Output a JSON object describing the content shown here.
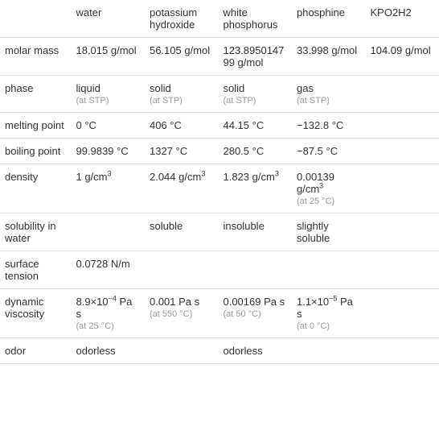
{
  "table": {
    "background_color": "#ffffff",
    "grid_color": "#e0e0e0",
    "text_color": "#333333",
    "note_color": "#999999",
    "font_size_main": 13,
    "font_size_note": 11,
    "columns": [
      "",
      "water",
      "potassium hydroxide",
      "white phosphorus",
      "phosphine",
      "KPO2H2"
    ],
    "rows": [
      {
        "label": "molar mass",
        "cells": [
          {
            "main": "18.015 g/mol"
          },
          {
            "main": "56.105 g/mol"
          },
          {
            "main": "123.895014799 g/mol"
          },
          {
            "main": "33.998 g/mol"
          },
          {
            "main": "104.09 g/mol"
          }
        ]
      },
      {
        "label": "phase",
        "cells": [
          {
            "main": "liquid",
            "note": "(at STP)"
          },
          {
            "main": "solid",
            "note": "(at STP)"
          },
          {
            "main": "solid",
            "note": "(at STP)"
          },
          {
            "main": "gas",
            "note": "(at STP)"
          },
          {
            "main": ""
          }
        ]
      },
      {
        "label": "melting point",
        "cells": [
          {
            "main": "0 °C"
          },
          {
            "main": "406 °C"
          },
          {
            "main": "44.15 °C"
          },
          {
            "main": "−132.8 °C"
          },
          {
            "main": ""
          }
        ]
      },
      {
        "label": "boiling point",
        "cells": [
          {
            "main": "99.9839 °C"
          },
          {
            "main": "1327 °C"
          },
          {
            "main": "280.5 °C"
          },
          {
            "main": "−87.5 °C"
          },
          {
            "main": ""
          }
        ]
      },
      {
        "label": "density",
        "cells": [
          {
            "main_html": "1 g/cm<sup>3</sup>"
          },
          {
            "main_html": "2.044 g/cm<sup>3</sup>"
          },
          {
            "main_html": "1.823 g/cm<sup>3</sup>"
          },
          {
            "main_html": "0.00139 g/cm<sup>3</sup>",
            "note": "(at 25 °C)"
          },
          {
            "main": ""
          }
        ]
      },
      {
        "label": "solubility in water",
        "cells": [
          {
            "main": ""
          },
          {
            "main": "soluble"
          },
          {
            "main": "insoluble"
          },
          {
            "main": "slightly soluble"
          },
          {
            "main": ""
          }
        ]
      },
      {
        "label": "surface tension",
        "cells": [
          {
            "main": "0.0728 N/m"
          },
          {
            "main": ""
          },
          {
            "main": ""
          },
          {
            "main": ""
          },
          {
            "main": ""
          }
        ]
      },
      {
        "label": "dynamic viscosity",
        "cells": [
          {
            "main_html": "8.9×10<sup>−4</sup> Pa s",
            "note": "(at 25 °C)"
          },
          {
            "main": "0.001 Pa s",
            "note": "(at 550 °C)"
          },
          {
            "main": "0.00169 Pa s",
            "note": "(at 50 °C)"
          },
          {
            "main_html": "1.1×10<sup>−5</sup> Pa s",
            "note": "(at 0 °C)"
          },
          {
            "main": ""
          }
        ]
      },
      {
        "label": "odor",
        "cells": [
          {
            "main": "odorless"
          },
          {
            "main": ""
          },
          {
            "main": "odorless"
          },
          {
            "main": ""
          },
          {
            "main": ""
          }
        ]
      }
    ]
  }
}
